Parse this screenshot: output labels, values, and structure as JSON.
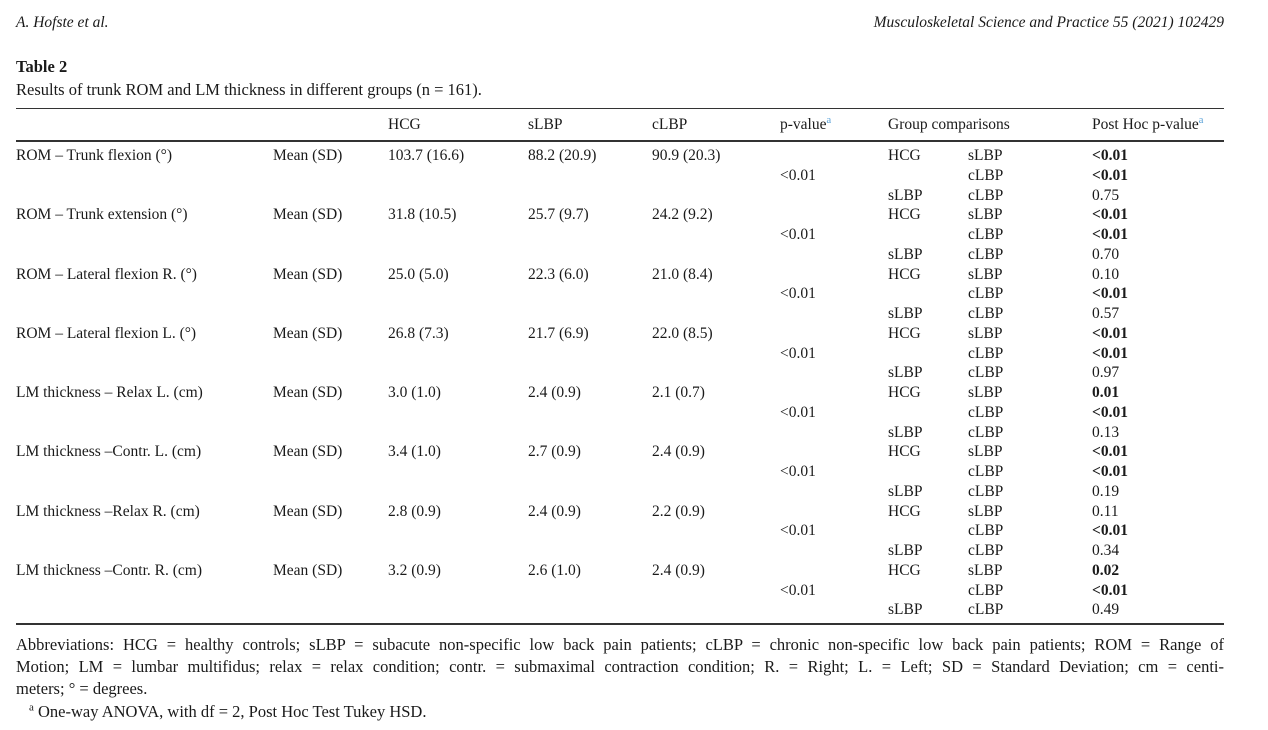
{
  "page": {
    "author_running_head": "A. Hofste et al.",
    "journal_running_head": "Musculoskeletal Science and Practice 55 (2021) 102429"
  },
  "table": {
    "title": "Table 2",
    "caption": "Results of trunk ROM and LM thickness in different groups (n = 161).",
    "header": {
      "hcg": "HCG",
      "slbp": "sLBP",
      "clbp": "cLBP",
      "p_value": "p-value",
      "group_comparisons": "Group comparisons",
      "post_hoc": "Post Hoc p-value",
      "footnote_marker": "a"
    },
    "rows": [
      {
        "label": "ROM – Trunk flexion (°)",
        "stat": "Mean (SD)",
        "hcg": "103.7 (16.6)",
        "slbp": "88.2 (20.9)",
        "clbp": "90.9 (20.3)",
        "p_value": "<0.01",
        "comparisons": [
          {
            "g1": "HCG",
            "g2": "sLBP",
            "p": "<0.01",
            "bold": true
          },
          {
            "g1": "",
            "g2": "cLBP",
            "p": "<0.01",
            "bold": true
          },
          {
            "g1": "sLBP",
            "g2": "cLBP",
            "p": "0.75",
            "bold": false
          }
        ]
      },
      {
        "label": "ROM – Trunk extension (°)",
        "stat": "Mean (SD)",
        "hcg": "31.8 (10.5)",
        "slbp": "25.7 (9.7)",
        "clbp": "24.2 (9.2)",
        "p_value": "<0.01",
        "comparisons": [
          {
            "g1": "HCG",
            "g2": "sLBP",
            "p": "<0.01",
            "bold": true
          },
          {
            "g1": "",
            "g2": "cLBP",
            "p": "<0.01",
            "bold": true
          },
          {
            "g1": "sLBP",
            "g2": "cLBP",
            "p": "0.70",
            "bold": false
          }
        ]
      },
      {
        "label": "ROM – Lateral flexion R. (°)",
        "stat": "Mean (SD)",
        "hcg": "25.0 (5.0)",
        "slbp": "22.3 (6.0)",
        "clbp": "21.0 (8.4)",
        "p_value": "<0.01",
        "comparisons": [
          {
            "g1": "HCG",
            "g2": "sLBP",
            "p": "0.10",
            "bold": false
          },
          {
            "g1": "",
            "g2": "cLBP",
            "p": "<0.01",
            "bold": true
          },
          {
            "g1": "sLBP",
            "g2": "cLBP",
            "p": "0.57",
            "bold": false
          }
        ]
      },
      {
        "label": "ROM – Lateral flexion L. (°)",
        "stat": "Mean (SD)",
        "hcg": "26.8 (7.3)",
        "slbp": "21.7 (6.9)",
        "clbp": "22.0 (8.5)",
        "p_value": "<0.01",
        "comparisons": [
          {
            "g1": "HCG",
            "g2": "sLBP",
            "p": "<0.01",
            "bold": true
          },
          {
            "g1": "",
            "g2": "cLBP",
            "p": "<0.01",
            "bold": true
          },
          {
            "g1": "sLBP",
            "g2": "cLBP",
            "p": "0.97",
            "bold": false
          }
        ]
      },
      {
        "label": "LM thickness – Relax L. (cm)",
        "stat": "Mean (SD)",
        "hcg": "3.0 (1.0)",
        "slbp": "2.4 (0.9)",
        "clbp": "2.1 (0.7)",
        "p_value": "<0.01",
        "comparisons": [
          {
            "g1": "HCG",
            "g2": "sLBP",
            "p": "0.01",
            "bold": true
          },
          {
            "g1": "",
            "g2": "cLBP",
            "p": "<0.01",
            "bold": true
          },
          {
            "g1": "sLBP",
            "g2": "cLBP",
            "p": "0.13",
            "bold": false
          }
        ]
      },
      {
        "label": "LM thickness –Contr. L. (cm)",
        "stat": "Mean (SD)",
        "hcg": "3.4 (1.0)",
        "slbp": "2.7 (0.9)",
        "clbp": "2.4 (0.9)",
        "p_value": "<0.01",
        "comparisons": [
          {
            "g1": "HCG",
            "g2": "sLBP",
            "p": "<0.01",
            "bold": true
          },
          {
            "g1": "",
            "g2": "cLBP",
            "p": "<0.01",
            "bold": true
          },
          {
            "g1": "sLBP",
            "g2": "cLBP",
            "p": "0.19",
            "bold": false
          }
        ]
      },
      {
        "label": "LM thickness –Relax R. (cm)",
        "stat": "Mean (SD)",
        "hcg": "2.8 (0.9)",
        "slbp": "2.4 (0.9)",
        "clbp": "2.2 (0.9)",
        "p_value": "<0.01",
        "comparisons": [
          {
            "g1": "HCG",
            "g2": "sLBP",
            "p": "0.11",
            "bold": false
          },
          {
            "g1": "",
            "g2": "cLBP",
            "p": "<0.01",
            "bold": true
          },
          {
            "g1": "sLBP",
            "g2": "cLBP",
            "p": "0.34",
            "bold": false
          }
        ]
      },
      {
        "label": "LM thickness –Contr. R. (cm)",
        "stat": "Mean (SD)",
        "hcg": "3.2 (0.9)",
        "slbp": "2.6 (1.0)",
        "clbp": "2.4 (0.9)",
        "p_value": "<0.01",
        "comparisons": [
          {
            "g1": "HCG",
            "g2": "sLBP",
            "p": "0.02",
            "bold": true
          },
          {
            "g1": "",
            "g2": "cLBP",
            "p": "<0.01",
            "bold": true
          },
          {
            "g1": "sLBP",
            "g2": "cLBP",
            "p": "0.49",
            "bold": false
          }
        ]
      }
    ]
  },
  "footer": {
    "abbreviation_lines": [
      "Abbreviations: HCG = healthy controls; sLBP = subacute non-specific low back pain patients; cLBP = chronic non-specific low back pain patients; ROM = Range of",
      "Motion; LM = lumbar multifidus; relax = relax condition; contr. = submaximal contraction condition; R. = Right; L. = Left; SD = Standard Deviation; cm = centi-",
      "meters; ° = degrees."
    ],
    "footnote_marker": "a",
    "footnote_text": "One-way ANOVA, with df = 2, Post Hoc Test Tukey HSD."
  },
  "colors": {
    "text": "#1a1a1a",
    "rule": "#333333",
    "footnote_ref_blue": "#569fd6",
    "background": "#ffffff"
  }
}
